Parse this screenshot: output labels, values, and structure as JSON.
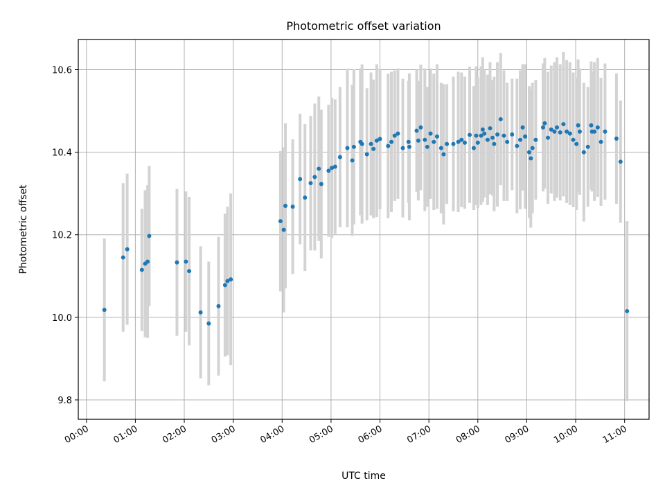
{
  "chart_data": {
    "type": "scatter",
    "title": "Photometric offset variation",
    "xlabel": "UTC time",
    "ylabel": "Photometric offset",
    "x_tick_labels": [
      "00:00",
      "01:00",
      "02:00",
      "03:00",
      "04:00",
      "05:00",
      "06:00",
      "07:00",
      "08:00",
      "09:00",
      "10:00",
      "11:00"
    ],
    "y_ticks": [
      9.8,
      10.0,
      10.2,
      10.4,
      10.6
    ],
    "y_tick_labels": [
      "9.8",
      "10.0",
      "10.2",
      "10.4",
      "10.6"
    ],
    "xlim": [
      "23:50",
      "11:30"
    ],
    "ylim": [
      9.753,
      10.673
    ],
    "grid": true,
    "point_color": "#1f77b4",
    "errorbar_color": "#d3d3d3",
    "points": [
      [
        "00:22",
        10.018,
        0.173
      ],
      [
        "00:45",
        10.145,
        0.18
      ],
      [
        "00:50",
        10.165,
        0.183
      ],
      [
        "01:08",
        10.115,
        0.148
      ],
      [
        "01:12",
        10.13,
        0.178
      ],
      [
        "01:15",
        10.135,
        0.185
      ],
      [
        "01:17",
        10.197,
        0.17
      ],
      [
        "01:51",
        10.133,
        0.178
      ],
      [
        "02:02",
        10.135,
        0.17
      ],
      [
        "02:06",
        10.112,
        0.18
      ],
      [
        "02:20",
        10.012,
        0.16
      ],
      [
        "02:30",
        9.985,
        0.15
      ],
      [
        "02:42",
        10.027,
        0.168
      ],
      [
        "02:50",
        10.078,
        0.173
      ],
      [
        "02:53",
        10.088,
        0.18
      ],
      [
        "02:57",
        10.092,
        0.208
      ],
      [
        "03:58",
        10.233,
        0.17
      ],
      [
        "04:02",
        10.212,
        0.2
      ],
      [
        "04:04",
        10.27,
        0.2
      ],
      [
        "04:13",
        10.268,
        0.163
      ],
      [
        "04:22",
        10.335,
        0.158
      ],
      [
        "04:28",
        10.29,
        0.178
      ],
      [
        "04:35",
        10.325,
        0.163
      ],
      [
        "04:40",
        10.34,
        0.178
      ],
      [
        "04:45",
        10.36,
        0.175
      ],
      [
        "04:48",
        10.323,
        0.18
      ],
      [
        "04:57",
        10.355,
        0.16
      ],
      [
        "05:01",
        10.362,
        0.17
      ],
      [
        "05:05",
        10.365,
        0.163
      ],
      [
        "05:11",
        10.388,
        0.17
      ],
      [
        "05:20",
        10.41,
        0.192
      ],
      [
        "05:26",
        10.38,
        0.183
      ],
      [
        "05:28",
        10.413,
        0.188
      ],
      [
        "05:36",
        10.425,
        0.178
      ],
      [
        "05:38",
        10.42,
        0.193
      ],
      [
        "05:44",
        10.395,
        0.16
      ],
      [
        "05:49",
        10.42,
        0.173
      ],
      [
        "05:52",
        10.408,
        0.168
      ],
      [
        "05:56",
        10.428,
        0.185
      ],
      [
        "06:00",
        10.432,
        0.17
      ],
      [
        "06:10",
        10.415,
        0.175
      ],
      [
        "06:14",
        10.425,
        0.17
      ],
      [
        "06:18",
        10.44,
        0.158
      ],
      [
        "06:22",
        10.445,
        0.158
      ],
      [
        "06:28",
        10.41,
        0.168
      ],
      [
        "06:35",
        10.425,
        0.148
      ],
      [
        "06:36",
        10.413,
        0.178
      ],
      [
        "06:45",
        10.452,
        0.148
      ],
      [
        "06:47",
        10.428,
        0.145
      ],
      [
        "06:50",
        10.46,
        0.152
      ],
      [
        "06:55",
        10.43,
        0.173
      ],
      [
        "06:58",
        10.413,
        0.145
      ],
      [
        "07:02",
        10.445,
        0.158
      ],
      [
        "07:06",
        10.425,
        0.165
      ],
      [
        "07:10",
        10.438,
        0.175
      ],
      [
        "07:15",
        10.41,
        0.158
      ],
      [
        "07:18",
        10.395,
        0.17
      ],
      [
        "07:22",
        10.42,
        0.145
      ],
      [
        "07:30",
        10.42,
        0.163
      ],
      [
        "07:36",
        10.425,
        0.17
      ],
      [
        "07:40",
        10.43,
        0.163
      ],
      [
        "07:44",
        10.423,
        0.16
      ],
      [
        "07:50",
        10.442,
        0.165
      ],
      [
        "07:55",
        10.41,
        0.15
      ],
      [
        "07:58",
        10.44,
        0.168
      ],
      [
        "08:00",
        10.423,
        0.158
      ],
      [
        "08:04",
        10.44,
        0.168
      ],
      [
        "08:06",
        10.455,
        0.175
      ],
      [
        "08:08",
        10.445,
        0.155
      ],
      [
        "08:12",
        10.43,
        0.158
      ],
      [
        "08:15",
        10.458,
        0.16
      ],
      [
        "08:18",
        10.435,
        0.14
      ],
      [
        "08:20",
        10.42,
        0.163
      ],
      [
        "08:24",
        10.443,
        0.175
      ],
      [
        "08:28",
        10.48,
        0.16
      ],
      [
        "08:32",
        10.44,
        0.158
      ],
      [
        "08:36",
        10.425,
        0.143
      ],
      [
        "08:42",
        10.443,
        0.135
      ],
      [
        "08:48",
        10.415,
        0.163
      ],
      [
        "08:52",
        10.43,
        0.168
      ],
      [
        "08:55",
        10.46,
        0.153
      ],
      [
        "08:58",
        10.438,
        0.175
      ],
      [
        "09:03",
        10.4,
        0.16
      ],
      [
        "09:05",
        10.385,
        0.168
      ],
      [
        "09:07",
        10.41,
        0.158
      ],
      [
        "09:11",
        10.43,
        0.145
      ],
      [
        "09:20",
        10.46,
        0.155
      ],
      [
        "09:22",
        10.47,
        0.158
      ],
      [
        "09:26",
        10.435,
        0.16
      ],
      [
        "09:30",
        10.455,
        0.155
      ],
      [
        "09:34",
        10.45,
        0.168
      ],
      [
        "09:37",
        10.46,
        0.17
      ],
      [
        "09:41",
        10.448,
        0.165
      ],
      [
        "09:45",
        10.468,
        0.175
      ],
      [
        "09:49",
        10.45,
        0.173
      ],
      [
        "09:53",
        10.445,
        0.173
      ],
      [
        "09:57",
        10.43,
        0.163
      ],
      [
        "10:01",
        10.42,
        0.16
      ],
      [
        "10:03",
        10.465,
        0.16
      ],
      [
        "10:05",
        10.45,
        0.153
      ],
      [
        "10:10",
        10.4,
        0.168
      ],
      [
        "10:15",
        10.413,
        0.145
      ],
      [
        "10:19",
        10.465,
        0.155
      ],
      [
        "10:20",
        10.45,
        0.145
      ],
      [
        "10:23",
        10.45,
        0.168
      ],
      [
        "10:27",
        10.46,
        0.168
      ],
      [
        "10:31",
        10.425,
        0.155
      ],
      [
        "10:36",
        10.45,
        0.165
      ],
      [
        "10:50",
        10.433,
        0.158
      ],
      [
        "10:55",
        10.377,
        0.148
      ],
      [
        "11:03",
        10.015,
        0.218
      ]
    ]
  }
}
